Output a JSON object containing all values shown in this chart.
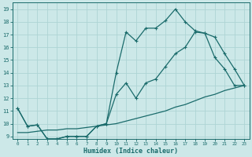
{
  "xlabel": "Humidex (Indice chaleur)",
  "ylabel": "",
  "bg_color": "#cce8e8",
  "line_color": "#1a6b6b",
  "grid_color": "#aed4d4",
  "xlim": [
    -0.5,
    23.5
  ],
  "ylim": [
    8.8,
    19.5
  ],
  "yticks": [
    9,
    10,
    11,
    12,
    13,
    14,
    15,
    16,
    17,
    18,
    19
  ],
  "xticks": [
    0,
    1,
    2,
    3,
    4,
    5,
    6,
    7,
    8,
    9,
    10,
    11,
    12,
    13,
    14,
    15,
    16,
    17,
    18,
    19,
    20,
    21,
    22,
    23
  ],
  "s1_x": [
    0,
    1,
    2,
    3,
    4,
    5,
    6,
    7,
    8,
    9,
    10,
    11,
    12,
    13,
    14,
    15,
    16,
    17,
    18,
    19,
    20,
    21,
    22,
    23
  ],
  "s1_y": [
    11.2,
    9.8,
    9.9,
    8.8,
    8.8,
    9.0,
    9.0,
    9.0,
    9.8,
    10.0,
    14.0,
    17.2,
    16.5,
    17.5,
    17.5,
    18.1,
    19.0,
    18.0,
    17.3,
    17.1,
    15.2,
    14.3,
    13.0,
    13.0
  ],
  "s2_x": [
    0,
    1,
    2,
    3,
    4,
    5,
    6,
    7,
    8,
    9,
    10,
    11,
    12,
    13,
    14,
    15,
    16,
    17,
    18,
    19,
    20,
    21,
    22,
    23
  ],
  "s2_y": [
    11.2,
    9.8,
    9.9,
    8.8,
    8.8,
    9.0,
    9.0,
    9.0,
    9.8,
    10.0,
    12.3,
    13.2,
    12.0,
    13.2,
    13.5,
    14.5,
    15.5,
    16.0,
    17.2,
    17.1,
    16.8,
    15.5,
    14.3,
    13.0
  ],
  "s3_x": [
    0,
    1,
    2,
    3,
    4,
    5,
    6,
    7,
    8,
    9,
    10,
    11,
    12,
    13,
    14,
    15,
    16,
    17,
    18,
    19,
    20,
    21,
    22,
    23
  ],
  "s3_y": [
    9.3,
    9.3,
    9.4,
    9.5,
    9.5,
    9.6,
    9.6,
    9.7,
    9.8,
    9.9,
    10.0,
    10.2,
    10.4,
    10.6,
    10.8,
    11.0,
    11.3,
    11.5,
    11.8,
    12.1,
    12.3,
    12.6,
    12.8,
    13.0
  ]
}
